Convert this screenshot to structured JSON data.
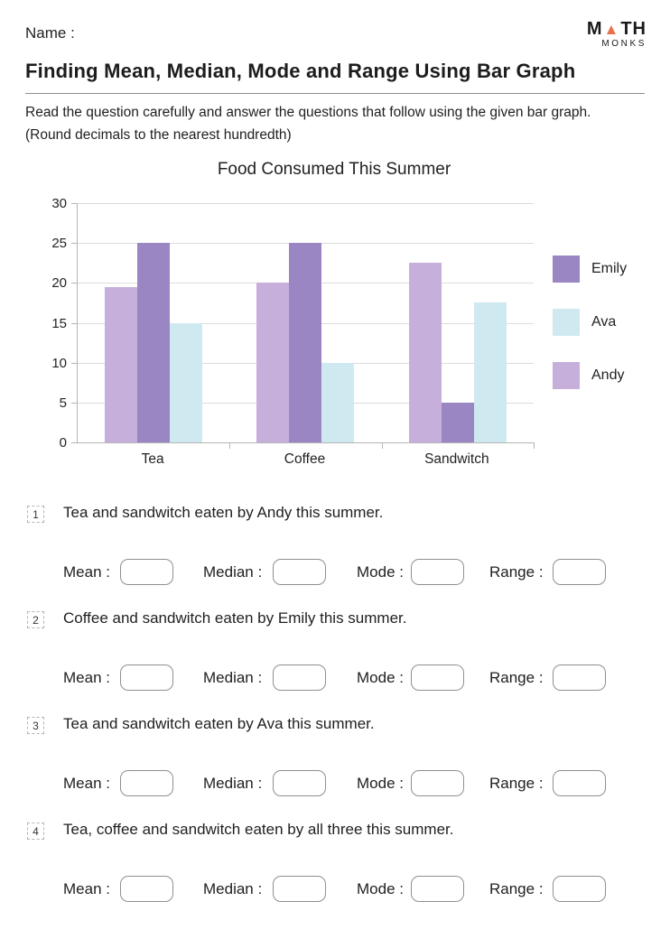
{
  "header": {
    "name_label": "Name :",
    "logo": {
      "part1": "M",
      "triangle": "▲",
      "part2": "TH",
      "subtitle": "MONKS",
      "triangle_color": "#e8704a"
    },
    "title": "Finding Mean, Median, Mode and Range Using Bar Graph",
    "instruction_line1": "Read the question carefully and answer the questions that follow using the given bar graph.",
    "instruction_line2": "(Round decimals to the nearest hundredth)"
  },
  "chart_data": {
    "type": "bar",
    "title": "Food Consumed This Summer",
    "categories": [
      "Tea",
      "Coffee",
      "Sandwitch"
    ],
    "series": [
      {
        "name": "Andy",
        "color": "#c7afdb",
        "values": [
          19.5,
          20,
          22.5
        ]
      },
      {
        "name": "Emily",
        "color": "#9a86c3",
        "values": [
          25,
          25,
          5
        ]
      },
      {
        "name": "Ava",
        "color": "#cfe9f0",
        "values": [
          15,
          10,
          17.5
        ]
      }
    ],
    "legend": [
      {
        "name": "Emily",
        "color": "#9a86c3"
      },
      {
        "name": "Ava",
        "color": "#cfe9f0"
      },
      {
        "name": "Andy",
        "color": "#c7afdb"
      }
    ],
    "xlabel": "",
    "ylabel": "",
    "ylim": [
      0,
      30
    ],
    "yticks": [
      0,
      5,
      10,
      15,
      20,
      25,
      30
    ],
    "grid": true,
    "legend_position": "right",
    "gridline_color": "#dcdcdc",
    "axis_color": "#b5b5b5"
  },
  "answer_labels": {
    "mean": "Mean :",
    "median": "Median :",
    "mode": "Mode :",
    "range": "Range :"
  },
  "questions": [
    {
      "number": "1",
      "text": "Tea and sandwitch  eaten by Andy this summer."
    },
    {
      "number": "2",
      "text": "Coffee and sandwitch eaten by Emily this summer."
    },
    {
      "number": "3",
      "text": "Tea and sandwitch eaten by Ava this summer."
    },
    {
      "number": "4",
      "text": "Tea, coffee and sandwitch eaten by all three this summer."
    }
  ]
}
